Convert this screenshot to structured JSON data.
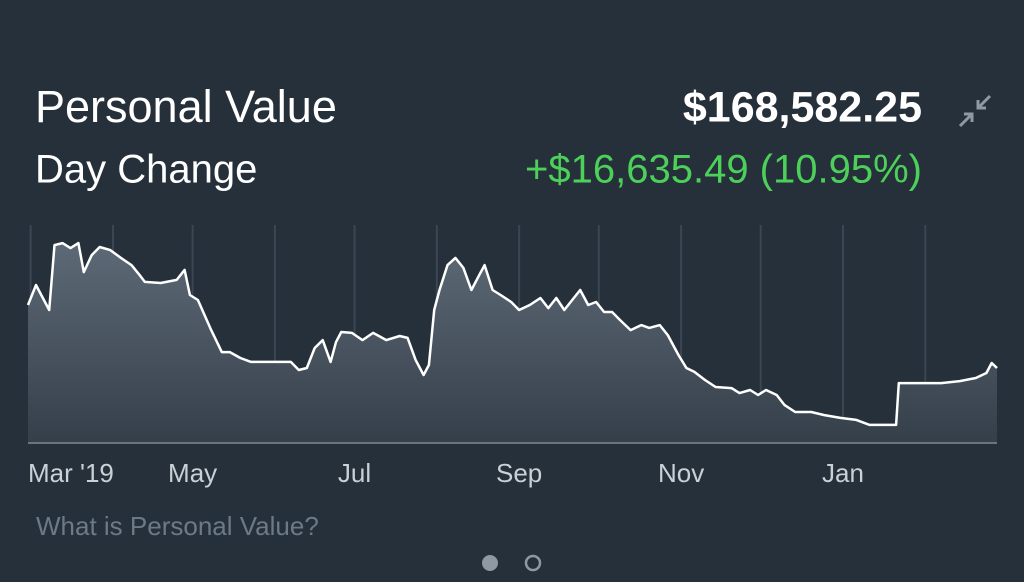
{
  "header": {
    "title": "Personal Value",
    "value": "$168,582.25",
    "change_label": "Day Change",
    "change": "+$16,635.49 (10.95%)"
  },
  "chart_data": {
    "type": "line",
    "color": "#ffffff",
    "x": [
      -1,
      2,
      5,
      7,
      9,
      12,
      15,
      18,
      20,
      23,
      26,
      30,
      34,
      38,
      41,
      43,
      49,
      55,
      58,
      60,
      63,
      68,
      72,
      75,
      79,
      83,
      90,
      98,
      101,
      104,
      107,
      110,
      113,
      115,
      117,
      121,
      125,
      129,
      134,
      139,
      142,
      145,
      148,
      150,
      152,
      154,
      157,
      160,
      163,
      166,
      169,
      171,
      174,
      177,
      181,
      184,
      188,
      192,
      195,
      198,
      201,
      204,
      207,
      210,
      213,
      216,
      219,
      222,
      226,
      230,
      233,
      237,
      240,
      244,
      247,
      250,
      254,
      258,
      264,
      267,
      271,
      274,
      277,
      281,
      284,
      288,
      294,
      299,
      305,
      311,
      316,
      320,
      326,
      327,
      335,
      343,
      350,
      356,
      360,
      362,
      364
    ],
    "values": [
      63.3,
      72.5,
      65.6,
      61.0,
      90.8,
      91.7,
      89.4,
      91.7,
      78.4,
      86.2,
      89.9,
      88.5,
      84.9,
      81.6,
      77.1,
      73.9,
      73.4,
      74.8,
      79.4,
      67.9,
      65.6,
      51.8,
      41.7,
      41.7,
      39.0,
      37.2,
      37.2,
      37.2,
      33.5,
      34.4,
      43.6,
      47.2,
      37.2,
      46.3,
      50.9,
      50.5,
      47.2,
      50.5,
      47.2,
      49.1,
      48.2,
      38.1,
      31.2,
      35.8,
      61.0,
      70.2,
      81.6,
      84.9,
      80.3,
      70.2,
      77.1,
      81.6,
      70.2,
      67.9,
      64.7,
      61.0,
      63.3,
      66.5,
      61.9,
      66.5,
      61.0,
      65.6,
      70.2,
      63.3,
      64.7,
      60.1,
      60.1,
      56.4,
      51.8,
      54.1,
      52.8,
      54.1,
      49.5,
      40.4,
      34.4,
      32.6,
      28.9,
      25.7,
      25.2,
      22.9,
      24.3,
      22.0,
      24.3,
      22.0,
      17.4,
      14.2,
      14.2,
      12.8,
      11.5,
      10.6,
      8.3,
      8.3,
      8.3,
      27.5,
      27.5,
      27.5,
      28.4,
      29.8,
      32.1,
      36.7,
      34.4
    ],
    "xlim": [
      -1,
      364
    ],
    "ylim": [
      0,
      100
    ],
    "xticks": [
      {
        "value": 0,
        "label": "Mar '19"
      },
      {
        "value": 61,
        "label": "May"
      },
      {
        "value": 122,
        "label": "Jul"
      },
      {
        "value": 184,
        "label": "Sep"
      },
      {
        "value": 245,
        "label": "Nov"
      },
      {
        "value": 306,
        "label": "Jan"
      }
    ],
    "minor_xticks": [
      31,
      92,
      153,
      214,
      275,
      337
    ],
    "grid": true
  },
  "footer": {
    "link": "What is Personal Value?"
  }
}
